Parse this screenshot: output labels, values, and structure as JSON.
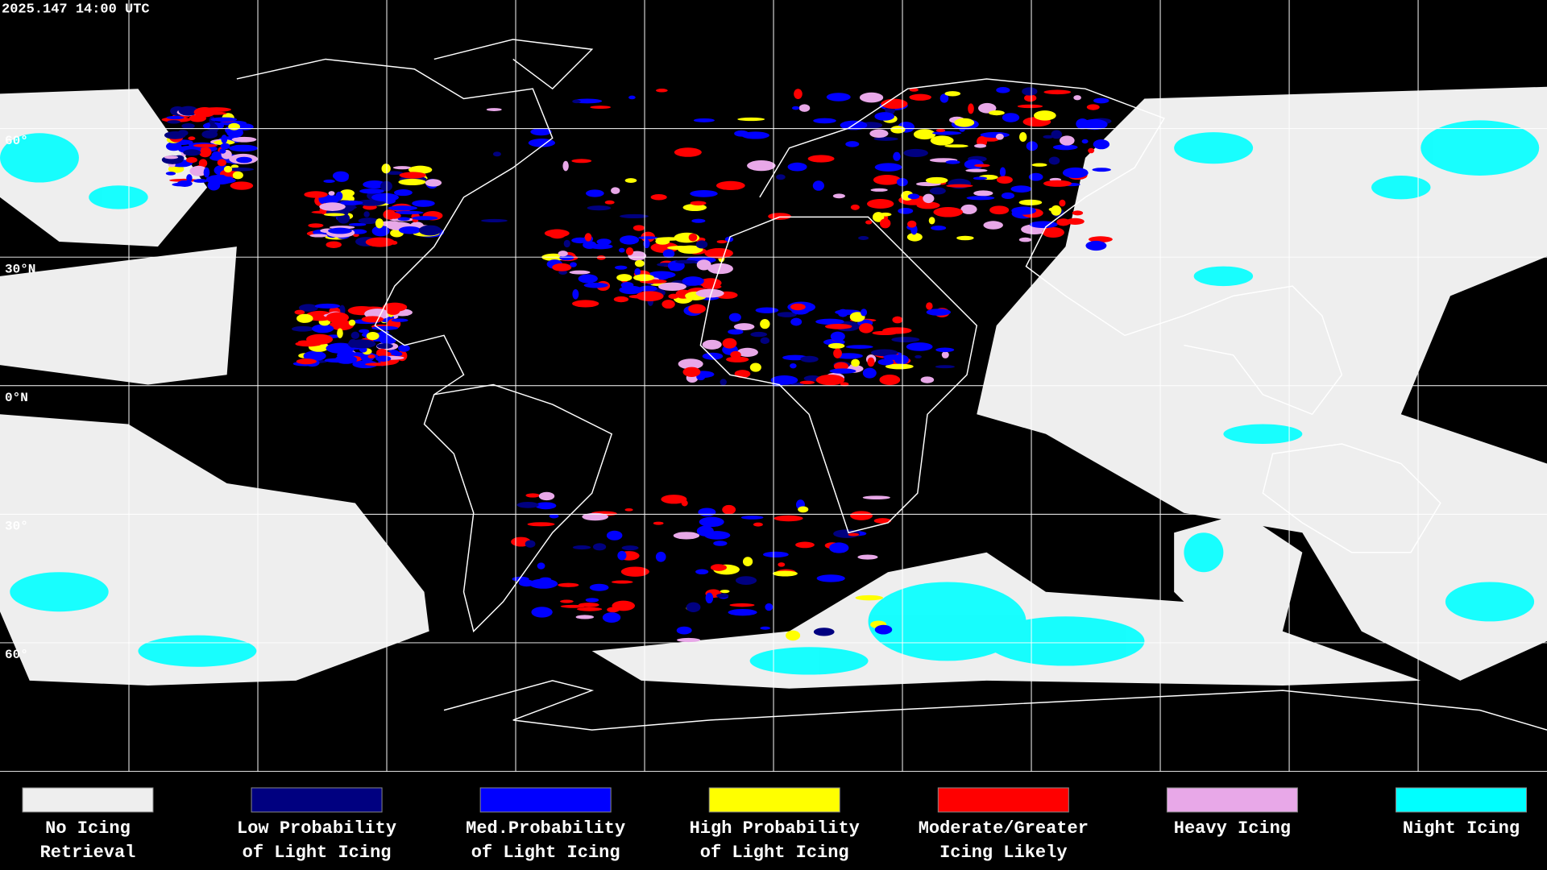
{
  "header": {
    "timestamp": "2025.147 14:00 UTC"
  },
  "latitude_labels": [
    "60°",
    "30°N",
    "0°N",
    "30°",
    "60°"
  ],
  "legend": [
    {
      "lines": [
        "No Icing",
        "Retrieval"
      ],
      "color": "#eeeeee"
    },
    {
      "lines": [
        "Low Probability",
        "of Light Icing"
      ],
      "color": "#000080"
    },
    {
      "lines": [
        "Med.Probability",
        "of Light Icing"
      ],
      "color": "#0000ff"
    },
    {
      "lines": [
        "High Probability",
        "of Light Icing"
      ],
      "color": "#ffff00"
    },
    {
      "lines": [
        "Moderate/Greater",
        "Icing Likely"
      ],
      "color": "#ff0000"
    },
    {
      "lines": [
        "Heavy Icing"
      ],
      "color": "#e8a8e8"
    },
    {
      "lines": [
        "Night Icing"
      ],
      "color": "#00ffff"
    }
  ]
}
